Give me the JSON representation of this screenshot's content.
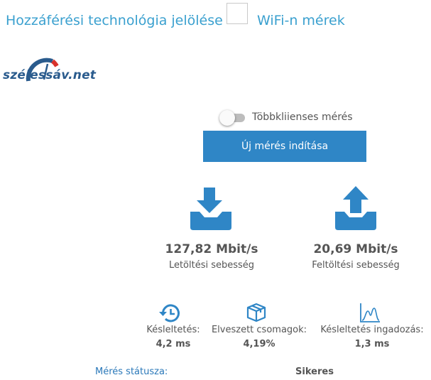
{
  "header": {
    "access_tech_label": "Hozzáférési technológia jelölése",
    "wifi_label": "WiFi-n mérek",
    "wifi_checked": false
  },
  "logo": {
    "text": "szélessáv.net"
  },
  "controls": {
    "multi_client_label": "Többkliienses mérés",
    "multi_client_enabled": false,
    "start_button_label": "Új mérés indítása"
  },
  "results": {
    "download": {
      "value": "127,82 Mbit/s",
      "label": "Letöltési sebesség"
    },
    "upload": {
      "value": "20,69 Mbit/s",
      "label": "Feltöltési sebesség"
    }
  },
  "metrics": {
    "latency": {
      "label": "Késleltetés:",
      "value": "4,2 ms"
    },
    "packet_loss": {
      "label": "Elveszett csomagok:",
      "value": "4,19%"
    },
    "jitter": {
      "label": "Késleltetés ingadozás:",
      "value": "1,3 ms"
    }
  },
  "status": {
    "label": "Mérés státusza:",
    "value": "Sikeres"
  },
  "colors": {
    "accent": "#2f86c6",
    "header_text": "#3aa0cf",
    "logo_blue": "#2a5b8d",
    "logo_red": "#d9322b"
  },
  "icons": {
    "download": "download-tray-icon",
    "upload": "upload-tray-icon",
    "latency": "history-clock-icon",
    "packet_loss": "package-box-icon",
    "jitter": "distribution-chart-icon"
  }
}
